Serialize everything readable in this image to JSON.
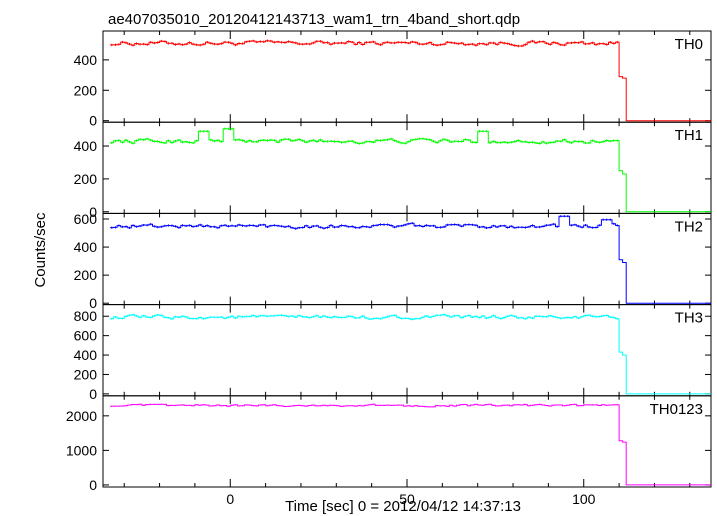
{
  "chart_data": {
    "type": "line",
    "title": "ae407035010_20120412143713_wam1_trn_4band_short.qdp",
    "xlabel": "Time [sec] 0 = 2012/04/12 14:37:13",
    "ylabel": "Counts/sec",
    "xlim": [
      -36,
      136
    ],
    "x_ticks": [
      0,
      50,
      100
    ],
    "x_tick_labels": [
      "0",
      "50",
      "100"
    ],
    "series": [
      {
        "name": "TH0",
        "color": "#ff0000",
        "ylim": [
          -10,
          590
        ],
        "y_ticks": [
          0,
          200,
          400
        ],
        "y_tick_labels": [
          "0",
          "200",
          "400"
        ],
        "level": 510,
        "noise": 22,
        "drop_x": 110,
        "tail": [
          290,
          280
        ],
        "spikes": []
      },
      {
        "name": "TH1",
        "color": "#00ff00",
        "ylim": [
          -10,
          545
        ],
        "y_ticks": [
          0,
          200,
          400
        ],
        "y_tick_labels": [
          "0",
          "200",
          "400"
        ],
        "level": 430,
        "noise": 20,
        "drop_x": 110,
        "tail": [
          250,
          230
        ],
        "spikes": [
          [
            -8,
            490
          ],
          [
            -1,
            505
          ],
          [
            71,
            490
          ]
        ]
      },
      {
        "name": "TH2",
        "color": "#0000ff",
        "ylim": [
          -10,
          640
        ],
        "y_ticks": [
          0,
          200,
          400,
          600
        ],
        "y_tick_labels": [
          "0",
          "200",
          "400",
          "600"
        ],
        "level": 550,
        "noise": 22,
        "drop_x": 110,
        "tail": [
          310,
          290
        ],
        "spikes": [
          [
            94,
            620
          ],
          [
            106,
            595
          ]
        ]
      },
      {
        "name": "TH3",
        "color": "#00ffff",
        "ylim": [
          -20,
          920
        ],
        "y_ticks": [
          0,
          200,
          400,
          600,
          800
        ],
        "y_tick_labels": [
          "0",
          "200",
          "400",
          "600",
          "800"
        ],
        "level": 790,
        "noise": 30,
        "drop_x": 110,
        "tail": [
          430,
          400
        ],
        "spikes": []
      },
      {
        "name": "TH0123",
        "color": "#ff00ff",
        "ylim": [
          -60,
          2580
        ],
        "y_ticks": [
          0,
          1000,
          2000
        ],
        "y_tick_labels": [
          "0",
          "1000",
          "2000"
        ],
        "level": 2300,
        "noise": 45,
        "drop_x": 110,
        "tail": [
          1280,
          1240
        ],
        "spikes": []
      }
    ]
  }
}
